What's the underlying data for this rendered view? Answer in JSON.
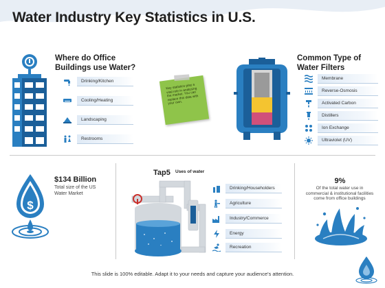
{
  "title": "Water Industry Key Statistics in U.S.",
  "office_section": {
    "heading_line1": "Where do Office",
    "heading_line2": "Buildings use Water?",
    "items": [
      {
        "label": "Drinking/Kitchen",
        "icon": "faucet-icon"
      },
      {
        "label": "Cooling/Heating",
        "icon": "air-conditioner-icon"
      },
      {
        "label": "Landscaping",
        "icon": "landscaping-icon"
      },
      {
        "label": "Restrooms",
        "icon": "restroom-icon"
      }
    ]
  },
  "note": {
    "text": "Key statistics play a vital role in analysing the market. You can replace this data with your own."
  },
  "filters_section": {
    "heading_line1": "Common Type of",
    "heading_line2": "Water Filters",
    "items": [
      {
        "label": "Membrane",
        "icon": "membrane-icon"
      },
      {
        "label": "Reverse-Osmosis",
        "icon": "reverse-osmosis-icon"
      },
      {
        "label": "Activated Carbon",
        "icon": "carbon-icon"
      },
      {
        "label": "Distillers",
        "icon": "distiller-icon"
      },
      {
        "label": "Ion Exchange",
        "icon": "ion-exchange-icon"
      },
      {
        "label": "Ultraviolet (UV)",
        "icon": "uv-icon"
      }
    ]
  },
  "market_stat": {
    "value": "$134 Billion",
    "line1": "Total size of the US",
    "line2": "Water Market"
  },
  "uses_section": {
    "heading": "Tap5",
    "subheading": "Uses of water",
    "items": [
      {
        "label": "Drinking/Householders",
        "icon": "household-icon"
      },
      {
        "label": "Agriculture",
        "icon": "agriculture-icon"
      },
      {
        "label": "Industry/Commerce",
        "icon": "factory-icon"
      },
      {
        "label": "Energy",
        "icon": "energy-icon"
      },
      {
        "label": "Recreation",
        "icon": "recreation-icon"
      }
    ]
  },
  "office_stat": {
    "value": "9%",
    "line1": "Of the total water use in",
    "line2": "commercial & institutional facilities",
    "line3": "come from office buildings"
  },
  "footer": "This slide is 100% editable. Adapt it to your needs and capture your audience's attention.",
  "colors": {
    "primary": "#2a7fc1",
    "dark_blue": "#1b5f99",
    "light_blue": "#dfeaf6",
    "note_green": "#8fc44a",
    "filter_yellow": "#f4c430",
    "filter_pink": "#d0507a"
  }
}
